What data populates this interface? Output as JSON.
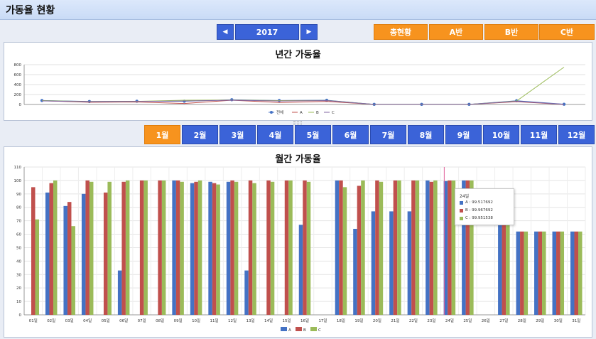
{
  "header": {
    "title": "가동율 현황"
  },
  "year_nav": {
    "prev_icon": "◀",
    "year": "2017",
    "next_icon": "▶"
  },
  "group_tabs": [
    "총현황",
    "A반",
    "B반",
    "C반"
  ],
  "months": [
    "1월",
    "2월",
    "3월",
    "4월",
    "5월",
    "6월",
    "7월",
    "8월",
    "9월",
    "10월",
    "11월",
    "12월"
  ],
  "active_month_index": 0,
  "colors": {
    "all": "#4472c4",
    "a": "#c0504d",
    "b": "#9bbb59",
    "c": "#8064a2",
    "tab_orange": "#f7931e",
    "nav_blue": "#3b63d8"
  },
  "yearly_chart": {
    "title": "년간 가동율",
    "yticks": [
      0,
      200,
      400,
      600,
      800
    ],
    "ylim": [
      0,
      800
    ],
    "legend": [
      "전체",
      "A",
      "B",
      "C"
    ],
    "chart_data": {
      "type": "line",
      "x": [
        1,
        2,
        3,
        4,
        5,
        6,
        7,
        8,
        9,
        10,
        11,
        12
      ],
      "series": [
        {
          "name": "전체",
          "values": [
            80,
            60,
            65,
            65,
            95,
            80,
            85,
            2,
            2,
            2,
            75,
            5
          ]
        },
        {
          "name": "A",
          "values": [
            75,
            45,
            50,
            20,
            85,
            40,
            60,
            2,
            2,
            2,
            55,
            2
          ]
        },
        {
          "name": "B",
          "values": [
            78,
            58,
            62,
            85,
            90,
            78,
            80,
            2,
            2,
            2,
            70,
            750
          ]
        },
        {
          "name": "C",
          "values": [
            72,
            55,
            60,
            70,
            85,
            70,
            78,
            2,
            2,
            2,
            65,
            3
          ]
        }
      ],
      "ylim": [
        0,
        800
      ]
    }
  },
  "monthly_chart": {
    "title": "월간 가동율",
    "yticks": [
      0,
      10,
      20,
      30,
      40,
      50,
      60,
      70,
      80,
      90,
      100,
      110
    ],
    "ylim": [
      0,
      110
    ],
    "legend": [
      "A",
      "B",
      "C"
    ],
    "days": [
      "01일",
      "02일",
      "03일",
      "04일",
      "05일",
      "06일",
      "07일",
      "08일",
      "09일",
      "10일",
      "11일",
      "12일",
      "13일",
      "14일",
      "15일",
      "16일",
      "17일",
      "18일",
      "19일",
      "20일",
      "21일",
      "22일",
      "23일",
      "24일",
      "25일",
      "26일",
      "27일",
      "28일",
      "29일",
      "30일",
      "31일"
    ],
    "chart_data": {
      "type": "bar",
      "categories": [
        "01일",
        "02일",
        "03일",
        "04일",
        "05일",
        "06일",
        "07일",
        "08일",
        "09일",
        "10일",
        "11일",
        "12일",
        "13일",
        "14일",
        "15일",
        "16일",
        "17일",
        "18일",
        "19일",
        "20일",
        "21일",
        "22일",
        "23일",
        "24일",
        "25일",
        "26일",
        "27일",
        "28일",
        "29일",
        "30일",
        "31일"
      ],
      "series": [
        {
          "name": "A",
          "values": [
            0,
            91,
            81,
            90,
            0,
            33,
            0,
            0,
            100,
            98,
            99,
            99,
            33,
            0,
            0,
            67,
            0,
            100,
            64,
            77,
            77,
            77,
            100,
            99.517692,
            100,
            0,
            83,
            62,
            62,
            62,
            62
          ]
        },
        {
          "name": "B",
          "values": [
            95,
            98,
            84,
            100,
            91,
            99,
            100,
            100,
            100,
            99,
            98,
            100,
            100,
            100,
            100,
            100,
            0,
            100,
            96,
            100,
            100,
            100,
            99,
            99.967692,
            100,
            0,
            85,
            62,
            62,
            62,
            62
          ]
        },
        {
          "name": "C",
          "values": [
            71,
            100,
            66,
            99,
            99,
            100,
            100,
            100,
            99,
            100,
            97,
            99,
            98,
            99,
            100,
            99,
            0,
            95,
            100,
            99,
            100,
            100,
            100,
            99.951538,
            100,
            0,
            77,
            62,
            62,
            62,
            62
          ]
        }
      ],
      "ylim": [
        0,
        110
      ]
    }
  },
  "tooltip": {
    "title": "24일",
    "rows": [
      "A : 99.517692",
      "B : 99.967692",
      "C : 99.951538"
    ]
  }
}
